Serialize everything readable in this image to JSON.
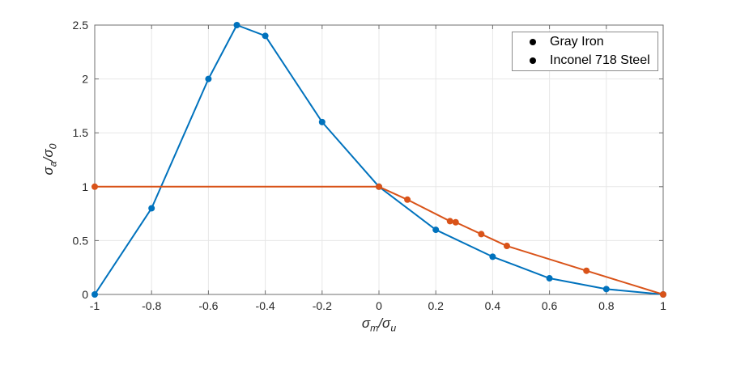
{
  "chart_data": {
    "type": "line",
    "xlabel": "σ_m/σ_u",
    "ylabel": "σ_a/σ_0",
    "xlim": [
      -1,
      1
    ],
    "ylim": [
      0,
      2.5
    ],
    "x_ticks": [
      -1,
      -0.8,
      -0.6,
      -0.4,
      -0.2,
      0,
      0.2,
      0.4,
      0.6,
      0.8,
      1
    ],
    "x_tick_labels": [
      "-1",
      "-0.8",
      "-0.6",
      "-0.4",
      "-0.2",
      "0",
      "0.2",
      "0.4",
      "0.6",
      "0.8",
      "1"
    ],
    "y_ticks": [
      0,
      0.5,
      1,
      1.5,
      2,
      2.5
    ],
    "y_tick_labels": [
      "0",
      "0.5",
      "1",
      "1.5",
      "2",
      "2.5"
    ],
    "grid": true,
    "legend_position": "top-right",
    "series": [
      {
        "name": "Gray Iron",
        "color": "#0072BD",
        "marker": "circle",
        "x": [
          -1,
          -0.8,
          -0.6,
          -0.5,
          -0.4,
          -0.2,
          0,
          0.2,
          0.4,
          0.6,
          0.8,
          1
        ],
        "y": [
          0,
          0.8,
          2.0,
          2.5,
          2.4,
          1.6,
          1.0,
          0.6,
          0.35,
          0.15,
          0.05,
          0
        ]
      },
      {
        "name": "Inconel 718 Steel",
        "color": "#D95319",
        "marker": "circle",
        "x": [
          -1,
          0,
          0.1,
          0.25,
          0.27,
          0.36,
          0.45,
          0.73,
          1
        ],
        "y": [
          1,
          1,
          0.88,
          0.68,
          0.67,
          0.56,
          0.45,
          0.22,
          0
        ]
      }
    ],
    "colors": {
      "grid": "#e7e7e7",
      "axis": "#6f6f6f",
      "tick_label": "#262626",
      "legend_border": "#8c8c8c",
      "background": "#ffffff"
    }
  }
}
